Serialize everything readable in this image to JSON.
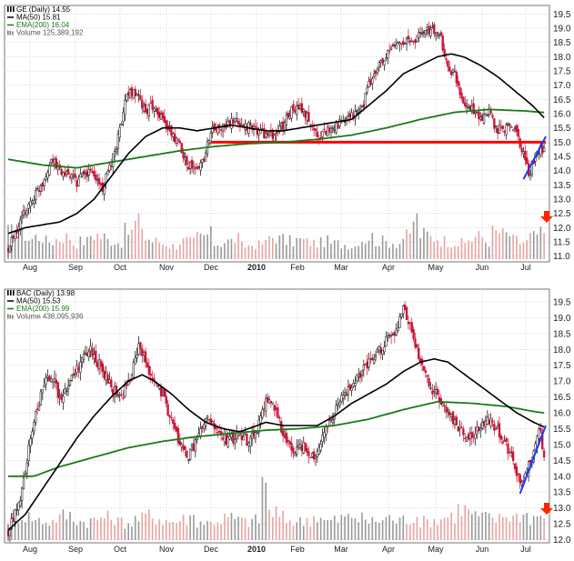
{
  "chart_data": [
    {
      "type": "candlestick",
      "title": "GE (Daily) 14.55",
      "legend": [
        {
          "label": "GE (Daily) 14.55",
          "icon": "candle-icon",
          "color": "#000000"
        },
        {
          "label": "MA(50) 15.81",
          "icon": "line-icon",
          "color": "#000000"
        },
        {
          "label": "EMA(200) 16.04",
          "icon": "line-icon",
          "color": "#1a7a1a"
        },
        {
          "label": "Volume 125,389,192",
          "icon": "bars-icon",
          "color": "#7f7f7f"
        }
      ],
      "legend_placement": "top-left",
      "x_labels": [
        "Aug",
        "Sep",
        "Oct",
        "Nov",
        "Dec",
        "2010",
        "Feb",
        "Mar",
        "Apr",
        "May",
        "Jun",
        "Jul"
      ],
      "x_label_bold": "2010",
      "y_ticks": [
        11.0,
        11.5,
        12.0,
        12.5,
        13.0,
        13.5,
        14.0,
        14.5,
        15.0,
        15.5,
        16.0,
        16.5,
        17.0,
        17.5,
        18.0,
        18.5,
        19.0,
        19.5
      ],
      "y_tick_labels": [
        "11.0",
        "11.5",
        "12.0",
        "12.5",
        "13.0",
        "13.5",
        "14.0",
        "14.5",
        "15.0",
        "15.5",
        "16.0",
        "16.5",
        "17.0",
        "17.5",
        "18.0",
        "18.5",
        "19.0",
        "19.5"
      ],
      "ylim": [
        10.8,
        19.8
      ],
      "grid": true,
      "close_path": [
        [
          0,
          11.2
        ],
        [
          10,
          12.6
        ],
        [
          20,
          13.6
        ],
        [
          25,
          14.4
        ],
        [
          30,
          14.0
        ],
        [
          40,
          13.6
        ],
        [
          48,
          14.0
        ],
        [
          55,
          13.4
        ],
        [
          62,
          14.6
        ],
        [
          66,
          15.8
        ],
        [
          70,
          16.8
        ],
        [
          75,
          16.6
        ],
        [
          80,
          16.1
        ],
        [
          85,
          16.3
        ],
        [
          90,
          15.8
        ],
        [
          95,
          15.3
        ],
        [
          100,
          14.9
        ],
        [
          105,
          14.2
        ],
        [
          110,
          14.0
        ],
        [
          114,
          14.5
        ],
        [
          118,
          15.4
        ],
        [
          124,
          15.5
        ],
        [
          130,
          15.7
        ],
        [
          138,
          15.6
        ],
        [
          146,
          15.4
        ],
        [
          154,
          15.2
        ],
        [
          160,
          15.6
        ],
        [
          164,
          16.1
        ],
        [
          170,
          16.2
        ],
        [
          175,
          15.8
        ],
        [
          180,
          15.2
        ],
        [
          185,
          15.4
        ],
        [
          190,
          15.6
        ],
        [
          196,
          15.7
        ],
        [
          202,
          16.0
        ],
        [
          206,
          16.2
        ],
        [
          210,
          17.0
        ],
        [
          215,
          17.6
        ],
        [
          220,
          18.0
        ],
        [
          225,
          18.4
        ],
        [
          230,
          18.6
        ],
        [
          235,
          18.5
        ],
        [
          240,
          18.8
        ],
        [
          244,
          19.0
        ],
        [
          248,
          18.9
        ],
        [
          252,
          18.6
        ],
        [
          256,
          17.6
        ],
        [
          260,
          17.4
        ],
        [
          264,
          16.6
        ],
        [
          268,
          16.2
        ],
        [
          272,
          16.0
        ],
        [
          276,
          15.8
        ],
        [
          280,
          16.0
        ],
        [
          284,
          15.5
        ],
        [
          288,
          15.4
        ],
        [
          292,
          15.6
        ],
        [
          296,
          15.4
        ],
        [
          300,
          14.5
        ],
        [
          303,
          13.9
        ],
        [
          306,
          14.4
        ],
        [
          310,
          14.9
        ],
        [
          313,
          14.55
        ]
      ],
      "ma50_path": [
        [
          0,
          11.8
        ],
        [
          10,
          12.0
        ],
        [
          20,
          12.1
        ],
        [
          30,
          12.2
        ],
        [
          40,
          12.5
        ],
        [
          50,
          13.0
        ],
        [
          60,
          13.8
        ],
        [
          70,
          14.6
        ],
        [
          80,
          15.2
        ],
        [
          90,
          15.5
        ],
        [
          100,
          15.5
        ],
        [
          110,
          15.4
        ],
        [
          120,
          15.5
        ],
        [
          130,
          15.6
        ],
        [
          140,
          15.5
        ],
        [
          150,
          15.4
        ],
        [
          160,
          15.4
        ],
        [
          170,
          15.5
        ],
        [
          180,
          15.6
        ],
        [
          190,
          15.7
        ],
        [
          200,
          15.8
        ],
        [
          210,
          16.3
        ],
        [
          220,
          16.8
        ],
        [
          230,
          17.4
        ],
        [
          240,
          17.7
        ],
        [
          250,
          18.0
        ],
        [
          258,
          18.1
        ],
        [
          265,
          18.0
        ],
        [
          275,
          17.7
        ],
        [
          285,
          17.3
        ],
        [
          295,
          16.8
        ],
        [
          305,
          16.3
        ],
        [
          313,
          15.8
        ]
      ],
      "ema200_path": [
        [
          0,
          14.4
        ],
        [
          20,
          14.2
        ],
        [
          40,
          14.1
        ],
        [
          60,
          14.3
        ],
        [
          80,
          14.5
        ],
        [
          100,
          14.7
        ],
        [
          120,
          14.85
        ],
        [
          140,
          14.95
        ],
        [
          160,
          15.0
        ],
        [
          180,
          15.1
        ],
        [
          200,
          15.25
        ],
        [
          220,
          15.5
        ],
        [
          240,
          15.8
        ],
        [
          260,
          16.05
        ],
        [
          280,
          16.15
        ],
        [
          300,
          16.1
        ],
        [
          313,
          16.04
        ]
      ],
      "volume_heights": [
        0.6,
        0.55,
        0.45,
        0.5,
        0.4,
        0.45,
        0.5,
        0.35,
        0.4,
        0.55,
        0.5,
        0.42,
        0.38,
        0.6,
        0.8,
        0.45,
        0.4,
        0.35,
        0.3,
        0.4,
        0.38,
        0.5,
        0.55,
        0.35,
        0.4,
        0.45,
        0.3,
        0.32,
        0.35,
        0.5,
        0.45,
        0.4,
        0.42,
        0.38,
        0.36,
        0.4,
        0.35,
        0.33,
        0.3,
        0.45,
        0.5,
        0.4,
        0.38,
        0.36,
        0.5,
        0.9,
        0.55,
        0.48,
        0.42,
        0.4,
        0.35,
        0.45,
        0.5,
        0.4,
        0.6,
        0.55,
        0.42,
        0.38,
        0.5,
        0.55
      ],
      "support_line": {
        "value": 15.0,
        "x_from": 118,
        "x_to": 313,
        "color": "#ff0000"
      },
      "trend_line": {
        "from": [
          300,
          13.7
        ],
        "to": [
          313,
          15.2
        ],
        "color": "#1a3cff"
      },
      "marker": {
        "icon": "red-down-arrow-icon",
        "color": "#ff2200"
      }
    },
    {
      "type": "candlestick",
      "title": "BAC (Daily) 13.98",
      "legend": [
        {
          "label": "BAC (Daily) 13.98",
          "icon": "candle-icon",
          "color": "#000000"
        },
        {
          "label": "MA(50) 15.53",
          "icon": "line-icon",
          "color": "#000000"
        },
        {
          "label": "EMA(200) 15.99",
          "icon": "line-icon",
          "color": "#1a7a1a"
        },
        {
          "label": "Volume 438,095,936",
          "icon": "bars-icon",
          "color": "#7f7f7f"
        }
      ],
      "legend_placement": "top-left",
      "x_labels": [
        "Aug",
        "Sep",
        "Oct",
        "Nov",
        "Dec",
        "2010",
        "Feb",
        "Mar",
        "Apr",
        "May",
        "Jun",
        "Jul"
      ],
      "x_label_bold": "2010",
      "y_ticks": [
        12.0,
        12.5,
        13.0,
        13.5,
        14.0,
        14.5,
        15.0,
        15.5,
        16.0,
        16.5,
        17.0,
        17.5,
        18.0,
        18.5,
        19.0,
        19.5
      ],
      "y_tick_labels": [
        "12.0",
        "12.5",
        "13.0",
        "13.5",
        "14.0",
        "14.5",
        "15.0",
        "15.5",
        "16.0",
        "16.5",
        "17.0",
        "17.5",
        "18.0",
        "18.5",
        "19.0",
        "19.5"
      ],
      "ylim": [
        11.9,
        19.9
      ],
      "grid": true,
      "close_path": [
        [
          0,
          12.2
        ],
        [
          8,
          13.5
        ],
        [
          14,
          15.5
        ],
        [
          20,
          16.8
        ],
        [
          25,
          17.2
        ],
        [
          30,
          16.5
        ],
        [
          36,
          17.0
        ],
        [
          42,
          17.6
        ],
        [
          48,
          18.0
        ],
        [
          54,
          17.4
        ],
        [
          60,
          16.8
        ],
        [
          66,
          16.5
        ],
        [
          72,
          17.2
        ],
        [
          76,
          18.2
        ],
        [
          80,
          17.6
        ],
        [
          85,
          17.0
        ],
        [
          90,
          16.5
        ],
        [
          95,
          15.8
        ],
        [
          100,
          15.0
        ],
        [
          105,
          14.6
        ],
        [
          110,
          15.2
        ],
        [
          116,
          15.8
        ],
        [
          122,
          15.4
        ],
        [
          128,
          15.1
        ],
        [
          134,
          15.3
        ],
        [
          140,
          15.1
        ],
        [
          146,
          15.6
        ],
        [
          150,
          16.4
        ],
        [
          156,
          16.2
        ],
        [
          160,
          15.2
        ],
        [
          166,
          14.8
        ],
        [
          172,
          15.0
        ],
        [
          178,
          14.6
        ],
        [
          184,
          15.4
        ],
        [
          190,
          16.0
        ],
        [
          196,
          16.6
        ],
        [
          202,
          17.0
        ],
        [
          208,
          17.4
        ],
        [
          214,
          17.8
        ],
        [
          220,
          18.3
        ],
        [
          226,
          18.5
        ],
        [
          230,
          19.3
        ],
        [
          234,
          18.8
        ],
        [
          238,
          17.9
        ],
        [
          242,
          17.4
        ],
        [
          246,
          16.8
        ],
        [
          250,
          16.6
        ],
        [
          256,
          16.0
        ],
        [
          262,
          15.6
        ],
        [
          268,
          15.2
        ],
        [
          274,
          15.5
        ],
        [
          280,
          15.8
        ],
        [
          286,
          15.4
        ],
        [
          290,
          15.0
        ],
        [
          294,
          14.5
        ],
        [
          298,
          13.7
        ],
        [
          302,
          14.2
        ],
        [
          306,
          14.8
        ],
        [
          310,
          15.5
        ],
        [
          313,
          13.98
        ]
      ],
      "ma50_path": [
        [
          0,
          12.3
        ],
        [
          10,
          12.8
        ],
        [
          20,
          13.6
        ],
        [
          30,
          14.4
        ],
        [
          40,
          15.2
        ],
        [
          50,
          15.9
        ],
        [
          60,
          16.5
        ],
        [
          70,
          17.0
        ],
        [
          78,
          17.2
        ],
        [
          85,
          17.0
        ],
        [
          95,
          16.6
        ],
        [
          105,
          16.1
        ],
        [
          115,
          15.7
        ],
        [
          125,
          15.5
        ],
        [
          135,
          15.4
        ],
        [
          145,
          15.6
        ],
        [
          150,
          15.7
        ],
        [
          160,
          15.6
        ],
        [
          170,
          15.6
        ],
        [
          180,
          15.6
        ],
        [
          190,
          15.9
        ],
        [
          200,
          16.3
        ],
        [
          210,
          16.6
        ],
        [
          220,
          16.9
        ],
        [
          230,
          17.3
        ],
        [
          240,
          17.6
        ],
        [
          248,
          17.7
        ],
        [
          256,
          17.6
        ],
        [
          266,
          17.2
        ],
        [
          276,
          16.8
        ],
        [
          286,
          16.4
        ],
        [
          296,
          16.0
        ],
        [
          306,
          15.7
        ],
        [
          313,
          15.53
        ]
      ],
      "ema200_path": [
        [
          0,
          14.0
        ],
        [
          15,
          14.0
        ],
        [
          30,
          14.3
        ],
        [
          50,
          14.6
        ],
        [
          70,
          14.9
        ],
        [
          90,
          15.1
        ],
        [
          110,
          15.25
        ],
        [
          130,
          15.35
        ],
        [
          150,
          15.45
        ],
        [
          170,
          15.5
        ],
        [
          190,
          15.6
        ],
        [
          210,
          15.8
        ],
        [
          230,
          16.1
        ],
        [
          250,
          16.35
        ],
        [
          270,
          16.3
        ],
        [
          290,
          16.2
        ],
        [
          305,
          16.05
        ],
        [
          313,
          15.99
        ]
      ],
      "volume_heights": [
        0.35,
        0.4,
        0.38,
        0.32,
        0.3,
        0.36,
        0.4,
        0.34,
        0.3,
        0.32,
        0.38,
        0.36,
        0.3,
        0.28,
        0.34,
        0.4,
        0.36,
        0.32,
        0.3,
        0.34,
        0.38,
        0.3,
        0.28,
        0.32,
        0.36,
        0.34,
        0.3,
        0.32,
        0.95,
        0.45,
        0.36,
        0.32,
        0.3,
        0.34,
        0.38,
        0.3,
        0.32,
        0.36,
        0.4,
        0.34,
        0.3,
        0.32,
        0.36,
        0.3,
        0.34,
        0.38,
        0.3,
        0.32,
        0.36,
        0.4,
        0.5,
        0.45,
        0.38,
        0.36,
        0.34,
        0.4,
        0.38,
        0.42,
        0.36,
        0.4
      ],
      "trend_line": {
        "from": [
          298,
          13.45
        ],
        "to": [
          313,
          15.6
        ],
        "color": "#1a3cff"
      },
      "marker": {
        "icon": "red-down-arrow-icon",
        "color": "#ff2200"
      }
    }
  ]
}
